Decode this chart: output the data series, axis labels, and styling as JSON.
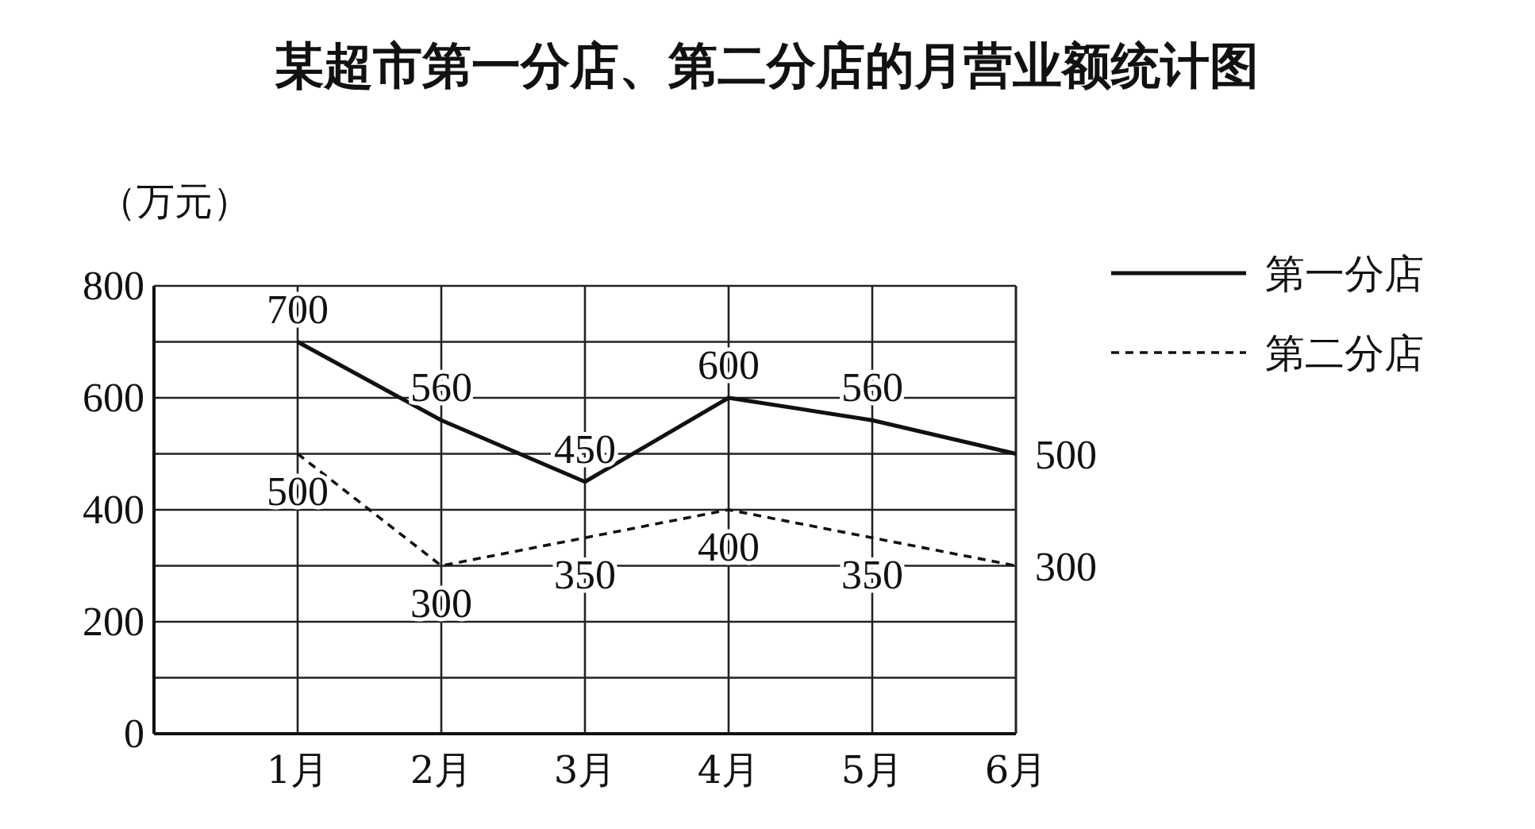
{
  "chart_data": {
    "type": "line",
    "title": "某超市第一分店、第二分店的月营业额统计图",
    "ylabel": "（万元）",
    "categories": [
      "1月",
      "2月",
      "3月",
      "4月",
      "5月",
      "6月"
    ],
    "series": [
      {
        "name": "第一分店",
        "color": "#111111",
        "line_style": "solid",
        "values": [
          700,
          560,
          450,
          600,
          560,
          500
        ]
      },
      {
        "name": "第二分店",
        "color": "#111111",
        "line_style": "dashed",
        "values": [
          500,
          300,
          350,
          400,
          350,
          300
        ]
      }
    ],
    "ylim": [
      0,
      800
    ],
    "yticks": [
      0,
      {
        "value": 100,
        "label": null
      },
      200,
      {
        "value": 300,
        "label": null
      },
      400,
      {
        "value": 500,
        "label": null
      },
      600,
      {
        "value": 700,
        "label": null
      },
      800
    ],
    "grid": true,
    "data_labels": true,
    "legend": "top right"
  }
}
